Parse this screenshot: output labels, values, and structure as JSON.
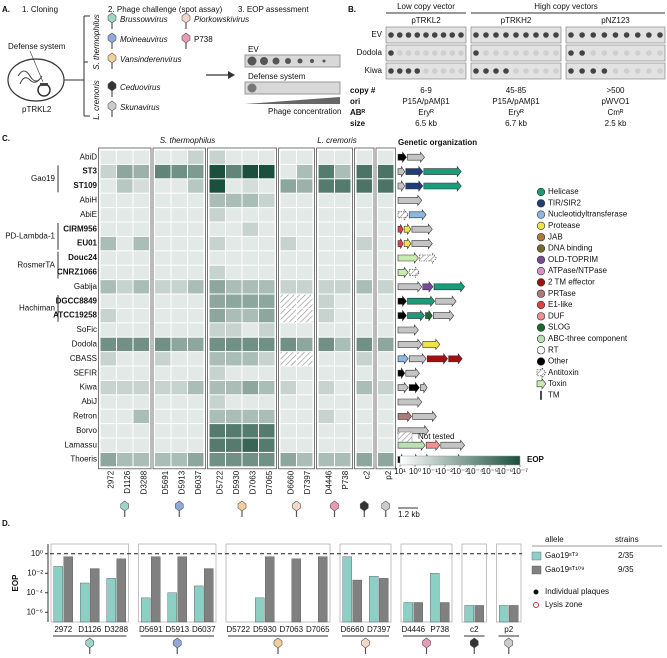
{
  "panel_a": {
    "label": "A.",
    "steps": [
      "1. Cloning",
      "2. Phage challenge (spot assay)",
      "3. EOP assessment"
    ],
    "defense_system": "Defense system",
    "vector": "pTRKL2",
    "hosts": [
      "S. thermophilus",
      "L. cremoris"
    ],
    "phages": [
      {
        "name": "Brussowvirus",
        "color": "#9fd4c9"
      },
      {
        "name": "Moineauvirus",
        "color": "#8fa9d9"
      },
      {
        "name": "Vansinderenvirus",
        "color": "#f0cf9c"
      },
      {
        "name": "Piorkowskivirus",
        "color": "#f6d8c8"
      },
      {
        "name": "P738",
        "color": "#e79ab8"
      },
      {
        "name": "Ceduovirus",
        "color": "#333333"
      },
      {
        "name": "Skunavirus",
        "color": "#cccccc"
      }
    ],
    "ev": "EV",
    "assay_defense": "Defense system",
    "gradient": "Phage concentration"
  },
  "panel_b": {
    "label": "B.",
    "vector_groups": [
      "Low copy vector",
      "High copy vectors"
    ],
    "vectors": [
      "pTRKL2",
      "pTRKH2",
      "pNZ123"
    ],
    "rows": [
      "EV",
      "Dodola",
      "Kiwa"
    ],
    "properties": [
      {
        "name": "copy #",
        "values": [
          "6-9",
          "45-85",
          ">500"
        ]
      },
      {
        "name": "ori",
        "values": [
          "P15A/pAMβ1",
          "P15A/pAMβ1",
          "pWVO1"
        ]
      },
      {
        "name": "ABᴿ",
        "values": [
          "Eryᴿ",
          "Eryᴿ",
          "Cmᴿ"
        ]
      },
      {
        "name": "size",
        "values": [
          "6.5 kb",
          "6.7 kb",
          "2.5 kb"
        ]
      }
    ]
  },
  "panel_c": {
    "label": "C.",
    "hosts": [
      "S. thermophilus",
      "L. cremoris"
    ],
    "columns": [
      "2972",
      "D1126",
      "D3288",
      "D5691",
      "D5913",
      "D6037",
      "D5722",
      "D5930",
      "D7063",
      "D7065",
      "D6660",
      "D7397",
      "D4446",
      "P738",
      "c2",
      "p2"
    ],
    "rows": [
      {
        "name": "AbiD",
        "values": [
          1,
          1,
          1,
          1,
          1,
          0.1,
          0.1,
          1,
          1,
          1,
          1,
          1,
          1,
          1,
          1,
          1
        ]
      },
      {
        "family": "Gao19",
        "variants": [
          {
            "name": "ST3",
            "values": [
              0.1,
              0.001,
              0.003,
              3e-05,
              0.0001,
              0.0003,
              1e-07,
              3e-05,
              1e-07,
              1e-07,
              1,
              0.01,
              1e-05,
              0.01,
              5e-06,
              5e-06
            ]
          },
          {
            "name": "ST109",
            "values": [
              1,
              0.03,
              0.3,
              1,
              1,
              0.03,
              1e-07,
              1,
              0.3,
              1,
              0.001,
              0.003,
              1e-05,
              1e-05,
              5e-06,
              5e-06
            ]
          }
        ]
      },
      {
        "name": "AbiH",
        "values": [
          1,
          1,
          1,
          1,
          1,
          1,
          0.01,
          0.01,
          0.01,
          0.1,
          1,
          1,
          1,
          1,
          1,
          1
        ]
      },
      {
        "name": "AbiE",
        "values": [
          1,
          1,
          1,
          1,
          1,
          1,
          0.1,
          1,
          1,
          1,
          1,
          1,
          1,
          1,
          1,
          1
        ]
      },
      {
        "family": "PD-Lambda-1",
        "variants": [
          {
            "name": "CIRM956",
            "values": [
              1,
              1,
              1,
              1,
              1,
              1,
              1,
              1,
              0.1,
              1,
              1,
              1,
              1,
              1,
              1,
              1
            ]
          },
          {
            "name": "EU01",
            "values": [
              0.01,
              1,
              0.01,
              1,
              1,
              1,
              0.1,
              1,
              1,
              1,
              0.1,
              1,
              1,
              1,
              0.1,
              1
            ]
          }
        ]
      },
      {
        "family": "RosmerTA",
        "variants": [
          {
            "name": "Douc24",
            "values": [
              1,
              1,
              1,
              1,
              1,
              1,
              1,
              1,
              1,
              1,
              1,
              1,
              1,
              1,
              1,
              1
            ]
          },
          {
            "name": "CNRZ1066",
            "values": [
              1,
              1,
              1,
              1,
              1,
              1,
              0.1,
              1,
              1,
              1,
              1,
              1,
              1,
              1,
              1,
              1
            ]
          }
        ]
      },
      {
        "name": "Gabija",
        "values": [
          0.01,
          0.1,
          0.01,
          0.1,
          0.1,
          0.01,
          0.001,
          0.01,
          0.01,
          0.01,
          0.1,
          0.1,
          0.1,
          0.1,
          0.01,
          0.1
        ]
      },
      {
        "family": "Hachiman",
        "variants": [
          {
            "name": "DGCC8849",
            "values": [
              1,
              1,
              1,
              1,
              1,
              1,
              0.001,
              0.001,
              0.001,
              0.001,
              null,
              null,
              0.1,
              1,
              1,
              1
            ]
          },
          {
            "name": "ATCC19258",
            "values": [
              0.1,
              1,
              1,
              1,
              1,
              1,
              0.001,
              0.01,
              0.01,
              0.001,
              null,
              null,
              0.1,
              1,
              1,
              1
            ]
          }
        ]
      },
      {
        "name": "SoFic",
        "values": [
          1,
          1,
          1,
          1,
          1,
          1,
          0.1,
          0.1,
          1,
          0.1,
          1,
          1,
          1,
          1,
          1,
          1
        ]
      },
      {
        "name": "Dodola",
        "values": [
          0.0001,
          0.0001,
          0.0001,
          0.0001,
          0.001,
          0.001,
          0.0001,
          0.0001,
          0.0001,
          0.0001,
          0.0001,
          0.001,
          0.0001,
          0.01,
          0.0001,
          0.001
        ]
      },
      {
        "name": "CBASS",
        "values": [
          0.1,
          1,
          1,
          0.1,
          1,
          1,
          0.01,
          0.01,
          0.01,
          0.1,
          null,
          null,
          1,
          1,
          0.1,
          1
        ]
      },
      {
        "name": "SEFIR",
        "values": [
          1,
          1,
          1,
          1,
          1,
          1,
          0.1,
          1,
          1,
          1,
          1,
          1,
          1,
          1,
          1,
          1
        ]
      },
      {
        "name": "Kiwa",
        "values": [
          0.1,
          0.1,
          0.1,
          0.1,
          0.1,
          0.01,
          0.01,
          0.01,
          0.001,
          0.01,
          0.1,
          1,
          0.1,
          1,
          0.01,
          0.1
        ]
      },
      {
        "name": "AbiJ",
        "values": [
          1,
          1,
          1,
          1,
          1,
          1,
          0.1,
          1,
          1,
          1,
          1,
          1,
          1,
          1,
          1,
          1
        ]
      },
      {
        "name": "Retron",
        "values": [
          1,
          1,
          0.01,
          1,
          1,
          1,
          0.01,
          0.01,
          0.01,
          0.01,
          1,
          1,
          0.1,
          1,
          1,
          1
        ]
      },
      {
        "name": "Borvo",
        "values": [
          1,
          1,
          1,
          1,
          1,
          1,
          1e-05,
          1e-05,
          1e-05,
          1e-05,
          1,
          1,
          1,
          1,
          1,
          1
        ]
      },
      {
        "name": "Lamassu",
        "values": [
          1,
          1,
          1,
          1,
          1,
          1,
          1e-05,
          1e-05,
          1e-06,
          1e-05,
          1,
          1,
          1,
          1,
          1,
          1
        ]
      },
      {
        "name": "Thoeris",
        "values": [
          0.001,
          0.01,
          0.01,
          0.01,
          0.01,
          0.001,
          0.0001,
          0.0001,
          0.0001,
          0.0001,
          0.001,
          0.01,
          0.01,
          0.01,
          0.001,
          0.001
        ]
      }
    ],
    "color_scale": {
      "title": "EOP",
      "log": true,
      "clim": [
        10,
        1e-07
      ],
      "colors": [
        "#ffffff",
        "#1b4f3e"
      ],
      "ticks": [
        {
          "value": 10,
          "label": "10¹"
        },
        {
          "value": 1,
          "label": "10⁰"
        },
        {
          "value": 0.1,
          "label": "10⁻¹"
        },
        {
          "value": 0.01,
          "label": "10⁻²"
        },
        {
          "value": 0.001,
          "label": "10⁻³"
        },
        {
          "value": 0.0001,
          "label": "10⁻⁴"
        },
        {
          "value": 1e-05,
          "label": "10⁻⁵"
        },
        {
          "value": 1e-06,
          "label": "10⁻⁶"
        },
        {
          "value": 1e-07,
          "label": "10⁻⁷"
        }
      ]
    },
    "genetic_organization": "Genetic organization",
    "not_tested": "Not tested",
    "scale_bar": "1.2 kb",
    "gene_legend": [
      {
        "name": "Helicase",
        "color": "#1a9b7a"
      },
      {
        "name": "TIR/SIR2",
        "color": "#1f3d7a"
      },
      {
        "name": "Nucleotidyltransferase",
        "color": "#8ab8e0"
      },
      {
        "name": "Protease",
        "color": "#f2e24a"
      },
      {
        "name": "JAB",
        "color": "#b07a3a"
      },
      {
        "name": "DNA binding",
        "color": "#7a6a2a"
      },
      {
        "name": "OLD-TOPRIM",
        "color": "#7a4a9a"
      },
      {
        "name": "ATPase/NTPase",
        "color": "#d890c8"
      },
      {
        "name": "2 TM effector",
        "color": "#a01010"
      },
      {
        "name": "PRTase",
        "color": "#b07a7a"
      },
      {
        "name": "E1-like",
        "color": "#e04040"
      },
      {
        "name": "DUF",
        "color": "#f09090"
      },
      {
        "name": "SLOG",
        "color": "#1a6a2a"
      },
      {
        "name": "ABC-three component",
        "color": "#b8e0b0"
      },
      {
        "name": "RT",
        "color": "#ffffff"
      },
      {
        "name": "Other",
        "color": "#000000"
      }
    ],
    "gene_features": [
      "Antitoxin",
      "Toxin",
      "TM"
    ]
  },
  "chart_data": {
    "type": "bar",
    "label": "D.",
    "ylabel": "EOP",
    "log": true,
    "ylim": [
      1e-07,
      10
    ],
    "yticks": [
      {
        "value": 1,
        "label": "10⁰"
      },
      {
        "value": 0.01,
        "label": "10⁻²"
      },
      {
        "value": 0.0001,
        "label": "10⁻⁴"
      },
      {
        "value": 1e-06,
        "label": "10⁻⁶"
      }
    ],
    "reference_line": 1,
    "categories": [
      "2972",
      "D1126",
      "D3288",
      "D5691",
      "D5913",
      "D6037",
      "D5722",
      "D5930",
      "D7063",
      "D7065",
      "D6660",
      "D7397",
      "D4446",
      "P738",
      "c2",
      "p2"
    ],
    "series": [
      {
        "name": "Gao19ˢᵀ³",
        "color": "#8ccfc4",
        "values": [
          0.05,
          0.001,
          0.003,
          3e-05,
          0.0001,
          0.0005,
          1e-07,
          3e-05,
          1e-07,
          1e-07,
          0.5,
          0.005,
          1e-05,
          0.01,
          5e-06,
          5e-06
        ]
      },
      {
        "name": "Gao19ˢᵀ¹⁰⁹",
        "color": "#808080",
        "values": [
          0.5,
          0.03,
          0.3,
          0.5,
          0.5,
          0.03,
          1e-07,
          0.5,
          0.3,
          0.5,
          0.002,
          0.003,
          1e-05,
          1e-05,
          5e-06,
          5e-06
        ]
      }
    ],
    "legend_title": "allele",
    "strains_title": "strains",
    "strains": [
      "2/35",
      "9/35"
    ],
    "markers": [
      "Individual plaques",
      "Lysis zone"
    ]
  }
}
